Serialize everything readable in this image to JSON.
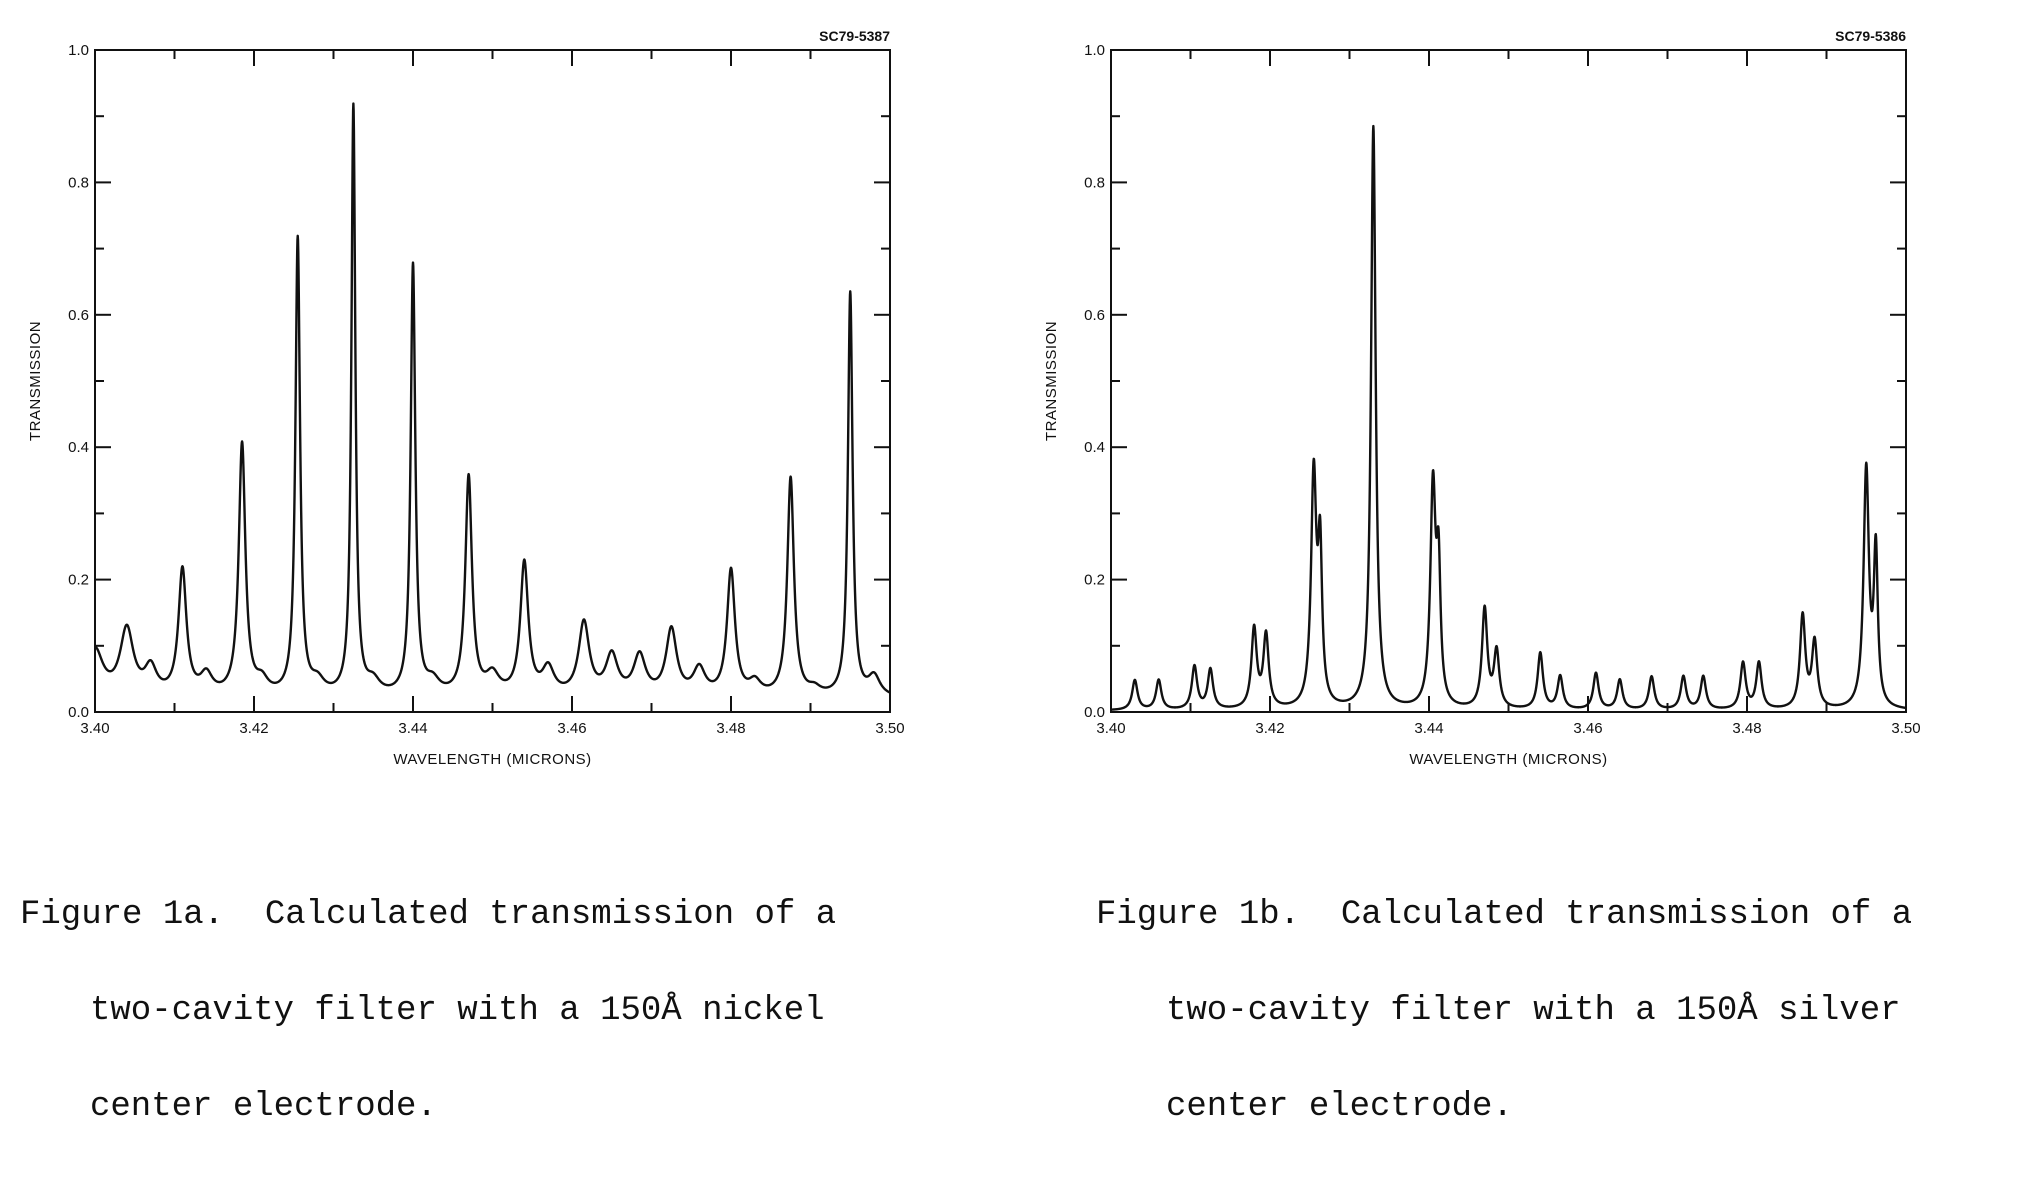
{
  "chart_data": [
    {
      "type": "line",
      "code": "SC79-5387",
      "xlabel": "WAVELENGTH (MICRONS)",
      "ylabel": "TRANSMISSION",
      "xlim": [
        3.4,
        3.5
      ],
      "ylim": [
        0.0,
        1.0
      ],
      "xticks": [
        "3.40",
        "3.42",
        "3.44",
        "3.46",
        "3.48",
        "3.50"
      ],
      "yticks": [
        "0.0",
        "0.2",
        "0.4",
        "0.6",
        "0.8",
        "1.0"
      ],
      "baseline": 0.02,
      "peaks": [
        {
          "x": 3.4,
          "y": 0.07,
          "w": 0.0012
        },
        {
          "x": 3.404,
          "y": 0.1,
          "w": 0.001
        },
        {
          "x": 3.407,
          "y": 0.04,
          "w": 0.0009
        },
        {
          "x": 3.411,
          "y": 0.19,
          "w": 0.0006
        },
        {
          "x": 3.414,
          "y": 0.03,
          "w": 0.0009
        },
        {
          "x": 3.4185,
          "y": 0.38,
          "w": 0.0005
        },
        {
          "x": 3.421,
          "y": 0.02,
          "w": 0.0009
        },
        {
          "x": 3.4255,
          "y": 0.69,
          "w": 0.00035
        },
        {
          "x": 3.428,
          "y": 0.02,
          "w": 0.001
        },
        {
          "x": 3.4325,
          "y": 0.89,
          "w": 0.0003
        },
        {
          "x": 3.435,
          "y": 0.02,
          "w": 0.001
        },
        {
          "x": 3.44,
          "y": 0.65,
          "w": 0.00035
        },
        {
          "x": 3.4425,
          "y": 0.02,
          "w": 0.001
        },
        {
          "x": 3.447,
          "y": 0.33,
          "w": 0.0005
        },
        {
          "x": 3.45,
          "y": 0.03,
          "w": 0.001
        },
        {
          "x": 3.454,
          "y": 0.2,
          "w": 0.0006
        },
        {
          "x": 3.457,
          "y": 0.04,
          "w": 0.0009
        },
        {
          "x": 3.4615,
          "y": 0.11,
          "w": 0.0008
        },
        {
          "x": 3.465,
          "y": 0.06,
          "w": 0.0009
        },
        {
          "x": 3.4685,
          "y": 0.06,
          "w": 0.0009
        },
        {
          "x": 3.4725,
          "y": 0.1,
          "w": 0.0008
        },
        {
          "x": 3.476,
          "y": 0.04,
          "w": 0.0009
        },
        {
          "x": 3.48,
          "y": 0.19,
          "w": 0.0006
        },
        {
          "x": 3.483,
          "y": 0.02,
          "w": 0.0009
        },
        {
          "x": 3.4875,
          "y": 0.33,
          "w": 0.0005
        },
        {
          "x": 3.4905,
          "y": 0.01,
          "w": 0.0009
        },
        {
          "x": 3.495,
          "y": 0.61,
          "w": 0.00035
        },
        {
          "x": 3.498,
          "y": 0.03,
          "w": 0.0009
        }
      ]
    },
    {
      "type": "line",
      "code": "SC79-5386",
      "xlabel": "WAVELENGTH (MICRONS)",
      "ylabel": "TRANSMISSION",
      "xlim": [
        3.4,
        3.5
      ],
      "ylim": [
        0.0,
        1.0
      ],
      "xticks": [
        "3.40",
        "3.42",
        "3.44",
        "3.46",
        "3.48",
        "3.50"
      ],
      "yticks": [
        "0.0",
        "0.2",
        "0.4",
        "0.6",
        "0.8",
        "1.0"
      ],
      "baseline": 0.002,
      "peaks": [
        {
          "x": 3.403,
          "y": 0.045,
          "w": 0.0004
        },
        {
          "x": 3.406,
          "y": 0.045,
          "w": 0.0004
        },
        {
          "x": 3.4105,
          "y": 0.065,
          "w": 0.0004
        },
        {
          "x": 3.4125,
          "y": 0.06,
          "w": 0.0004
        },
        {
          "x": 3.418,
          "y": 0.12,
          "w": 0.0004
        },
        {
          "x": 3.4195,
          "y": 0.11,
          "w": 0.0004
        },
        {
          "x": 3.4255,
          "y": 0.35,
          "w": 0.0004
        },
        {
          "x": 3.4263,
          "y": 0.22,
          "w": 0.0003
        },
        {
          "x": 3.433,
          "y": 0.88,
          "w": 0.00035
        },
        {
          "x": 3.4405,
          "y": 0.33,
          "w": 0.0004
        },
        {
          "x": 3.4412,
          "y": 0.19,
          "w": 0.0003
        },
        {
          "x": 3.447,
          "y": 0.15,
          "w": 0.0004
        },
        {
          "x": 3.4485,
          "y": 0.085,
          "w": 0.0004
        },
        {
          "x": 3.454,
          "y": 0.085,
          "w": 0.0004
        },
        {
          "x": 3.4565,
          "y": 0.05,
          "w": 0.0004
        },
        {
          "x": 3.461,
          "y": 0.055,
          "w": 0.0004
        },
        {
          "x": 3.464,
          "y": 0.045,
          "w": 0.0004
        },
        {
          "x": 3.468,
          "y": 0.05,
          "w": 0.0004
        },
        {
          "x": 3.472,
          "y": 0.05,
          "w": 0.0004
        },
        {
          "x": 3.4745,
          "y": 0.05,
          "w": 0.0004
        },
        {
          "x": 3.4795,
          "y": 0.07,
          "w": 0.0004
        },
        {
          "x": 3.4815,
          "y": 0.07,
          "w": 0.0004
        },
        {
          "x": 3.487,
          "y": 0.14,
          "w": 0.0004
        },
        {
          "x": 3.4885,
          "y": 0.1,
          "w": 0.0004
        },
        {
          "x": 3.495,
          "y": 0.36,
          "w": 0.0004
        },
        {
          "x": 3.4962,
          "y": 0.23,
          "w": 0.0003
        }
      ]
    }
  ],
  "captions": [
    {
      "lines": [
        "Figure 1a.  Calculated transmission of a",
        "two-cavity filter with a 150Å nickel",
        "center electrode."
      ]
    },
    {
      "lines": [
        "Figure 1b.  Calculated transmission of a",
        "two-cavity filter with a 150Å silver",
        "center electrode."
      ]
    }
  ]
}
